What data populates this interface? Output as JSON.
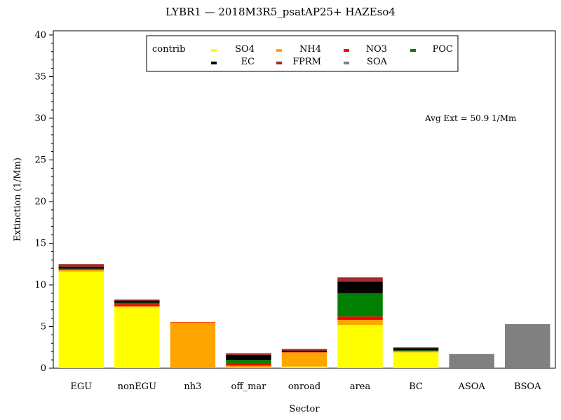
{
  "chart_data": {
    "type": "bar",
    "stacked": true,
    "title": "LYBR1 —  2018M3R5_psatAP25+ HAZEso4",
    "xlabel": "Sector",
    "ylabel": "Extinction (1/Mm)",
    "ylim": [
      0,
      40.5
    ],
    "yticks": [
      "0",
      "5",
      "10",
      "15",
      "20",
      "25",
      "30",
      "35",
      "40"
    ],
    "grid": false,
    "legend_position": "top-center",
    "legend_title": "contrib",
    "annotation": "Avg Ext =  50.9 1/Mm",
    "categories": [
      "EGU",
      "nonEGU",
      "nh3",
      "off_mar",
      "onroad",
      "area",
      "BC",
      "ASOA",
      "BSOA"
    ],
    "series": [
      {
        "name": "SO4",
        "color": "#ffff00",
        "values": [
          11.6,
          7.3,
          0.0,
          0.05,
          0.2,
          5.2,
          1.9,
          0.0,
          0.0
        ]
      },
      {
        "name": "NH4",
        "color": "#ffa500",
        "values": [
          0.2,
          0.15,
          5.5,
          0.25,
          1.7,
          0.6,
          0.15,
          0.0,
          0.0
        ]
      },
      {
        "name": "NO3",
        "color": "#ff0000",
        "values": [
          0.0,
          0.25,
          0.05,
          0.3,
          0.05,
          0.4,
          0.0,
          0.0,
          0.0
        ]
      },
      {
        "name": "POC",
        "color": "#008000",
        "values": [
          0.15,
          0.15,
          0.0,
          0.4,
          0.0,
          2.8,
          0.1,
          0.0,
          0.0
        ]
      },
      {
        "name": "EC",
        "color": "#000000",
        "values": [
          0.2,
          0.25,
          0.0,
          0.6,
          0.15,
          1.4,
          0.25,
          0.0,
          0.0
        ]
      },
      {
        "name": "FPRM",
        "color": "#a52a2a",
        "values": [
          0.35,
          0.15,
          0.0,
          0.2,
          0.2,
          0.5,
          0.1,
          0.0,
          0.0
        ]
      },
      {
        "name": "SOA",
        "color": "#808080",
        "values": [
          0.0,
          0.0,
          0.0,
          0.0,
          0.0,
          0.0,
          0.0,
          1.7,
          5.3
        ]
      }
    ]
  }
}
